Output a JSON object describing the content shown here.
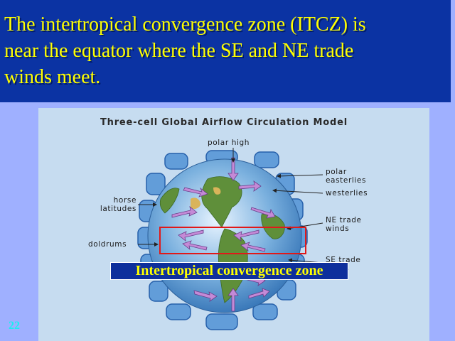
{
  "slide": {
    "title": "The intertropical  convergence  zone (ITCZ) is\nnear the equator where the SE and NE trade\nwinds meet.",
    "number": "22"
  },
  "diagram": {
    "title": "Three-cell Global Airflow Circulation Model",
    "labels": {
      "polar_high": "polar high",
      "polar_easterlies": "polar\neasterlies",
      "westerlies": "westerlies",
      "horse_latitudes": "horse\nlatitudes",
      "ne_trade_winds": "NE trade\nwinds",
      "doldrums": "doldrums",
      "se_trade_winds": "SE trade\nwinds"
    },
    "overlay_label": "Intertropical convergence zone"
  },
  "colors": {
    "title_band": "#0b33a3",
    "title_text": "#ffff00",
    "highlight_box": "#e21818",
    "slide_number": "#19f0f0"
  }
}
